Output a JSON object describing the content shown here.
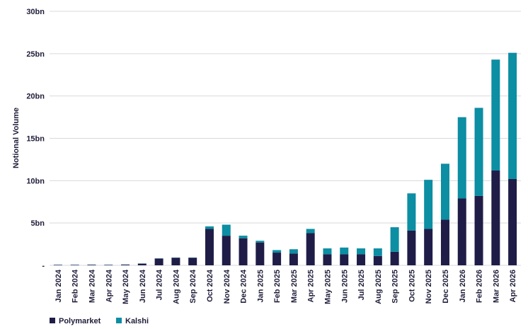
{
  "chart_data": {
    "type": "bar",
    "stacked": true,
    "ylabel": "Notional Volume",
    "xlabel": "",
    "ylim": [
      0,
      30
    ],
    "yticks": [
      0,
      5,
      10,
      15,
      20,
      25,
      30
    ],
    "ytick_labels": [
      "-",
      "5bn",
      "10bn",
      "15bn",
      "20bn",
      "25bn",
      "30bn"
    ],
    "grid": true,
    "legend": "bottom-left",
    "categories": [
      "Jan 2024",
      "Feb 2024",
      "Mar 2024",
      "Apr 2024",
      "May 2024",
      "Jun 2024",
      "Jul 2024",
      "Aug 2024",
      "Sep 2024",
      "Oct 2024",
      "Nov 2024",
      "Dec 2024",
      "Jan 2025",
      "Feb 2025",
      "Mar 2025",
      "Apr 2025",
      "May 2025",
      "Jun 2025",
      "Jul 2025",
      "Aug 2025",
      "Sep 2025",
      "Oct 2025",
      "Nov 2025",
      "Dec 2025",
      "Jan 2026",
      "Feb 2026",
      "Mar 2026",
      "Apr 2026"
    ],
    "series": [
      {
        "name": "Polymarket",
        "color": "#1f1d47",
        "values": [
          0.05,
          0.05,
          0.07,
          0.05,
          0.08,
          0.2,
          0.8,
          0.9,
          0.9,
          4.3,
          3.5,
          3.2,
          2.7,
          1.5,
          1.4,
          3.8,
          1.3,
          1.3,
          1.3,
          1.1,
          1.6,
          4.1,
          4.3,
          5.4,
          7.9,
          8.2,
          11.2,
          10.2
        ]
      },
      {
        "name": "Kalshi",
        "color": "#0c8ea3",
        "values": [
          0.02,
          0.02,
          0.02,
          0.02,
          0.02,
          0.02,
          0.02,
          0.02,
          0.02,
          0.3,
          1.3,
          0.3,
          0.2,
          0.3,
          0.5,
          0.5,
          0.7,
          0.8,
          0.7,
          0.9,
          2.9,
          4.4,
          5.8,
          6.6,
          9.6,
          10.4,
          13.1,
          14.9
        ]
      }
    ]
  }
}
